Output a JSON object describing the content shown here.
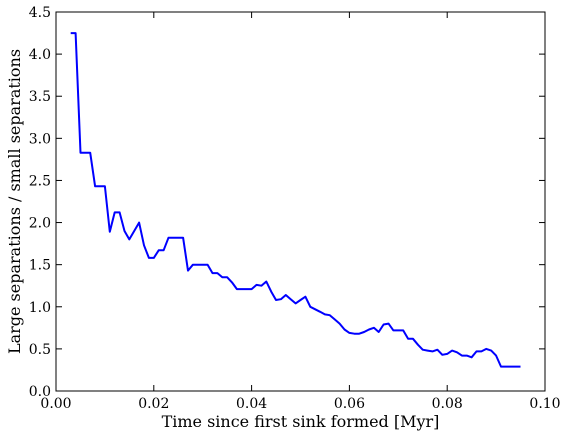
{
  "chart_data": {
    "type": "line",
    "xlabel": "Time since first sink formed [Myr]",
    "ylabel": "Large separations / small separations",
    "xlim": [
      0.0,
      0.1
    ],
    "ylim": [
      0.0,
      4.5
    ],
    "xticks": [
      "0.00",
      "0.02",
      "0.04",
      "0.06",
      "0.08",
      "0.10"
    ],
    "yticks": [
      "0.0",
      "0.5",
      "1.0",
      "1.5",
      "2.0",
      "2.5",
      "3.0",
      "3.5",
      "4.0",
      "4.5"
    ],
    "grid": false,
    "series": [
      {
        "color": "#0000ff",
        "x": [
          0.003,
          0.004,
          0.005,
          0.006,
          0.007,
          0.008,
          0.009,
          0.01,
          0.011,
          0.012,
          0.013,
          0.014,
          0.015,
          0.016,
          0.017,
          0.018,
          0.019,
          0.02,
          0.021,
          0.022,
          0.023,
          0.024,
          0.025,
          0.026,
          0.027,
          0.028,
          0.029,
          0.03,
          0.031,
          0.032,
          0.033,
          0.034,
          0.035,
          0.036,
          0.037,
          0.038,
          0.039,
          0.04,
          0.041,
          0.042,
          0.043,
          0.044,
          0.045,
          0.046,
          0.047,
          0.048,
          0.049,
          0.05,
          0.051,
          0.052,
          0.053,
          0.054,
          0.055,
          0.056,
          0.057,
          0.058,
          0.059,
          0.06,
          0.061,
          0.062,
          0.063,
          0.064,
          0.065,
          0.066,
          0.067,
          0.068,
          0.069,
          0.07,
          0.071,
          0.072,
          0.073,
          0.074,
          0.075,
          0.076,
          0.077,
          0.078,
          0.079,
          0.08,
          0.081,
          0.082,
          0.083,
          0.084,
          0.085,
          0.086,
          0.087,
          0.088,
          0.089,
          0.09,
          0.091,
          0.092,
          0.093,
          0.095
        ],
        "y": [
          4.25,
          4.25,
          2.83,
          2.83,
          2.83,
          2.43,
          2.43,
          2.43,
          1.89,
          2.12,
          2.12,
          1.9,
          1.8,
          1.9,
          2.0,
          1.73,
          1.58,
          1.58,
          1.67,
          1.67,
          1.82,
          1.82,
          1.82,
          1.82,
          1.43,
          1.5,
          1.5,
          1.5,
          1.5,
          1.4,
          1.4,
          1.35,
          1.35,
          1.29,
          1.21,
          1.21,
          1.21,
          1.21,
          1.26,
          1.25,
          1.3,
          1.18,
          1.08,
          1.09,
          1.14,
          1.09,
          1.04,
          1.08,
          1.12,
          1.0,
          0.97,
          0.94,
          0.91,
          0.9,
          0.85,
          0.8,
          0.73,
          0.69,
          0.68,
          0.68,
          0.7,
          0.73,
          0.75,
          0.7,
          0.79,
          0.8,
          0.72,
          0.72,
          0.72,
          0.62,
          0.62,
          0.55,
          0.49,
          0.48,
          0.47,
          0.49,
          0.43,
          0.44,
          0.48,
          0.46,
          0.42,
          0.42,
          0.4,
          0.47,
          0.47,
          0.5,
          0.48,
          0.42,
          0.29,
          0.29,
          0.29,
          0.29
        ]
      }
    ]
  }
}
